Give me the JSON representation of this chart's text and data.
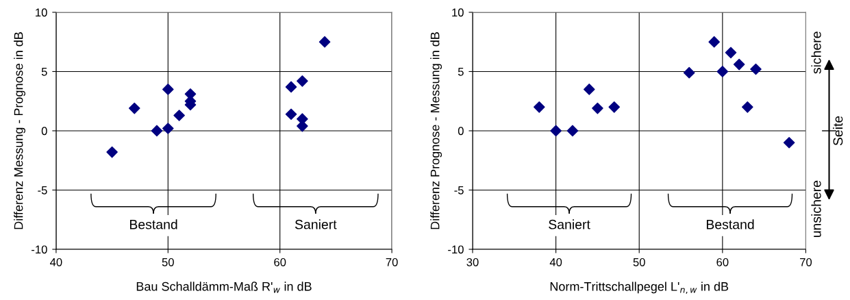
{
  "chart_data": [
    {
      "type": "scatter",
      "xlabel": "Bau Schalldämm-Maß R'$_{w}$ in dB",
      "ylabel": "Differenz Messung - Prognose in dB",
      "x": [
        45,
        47,
        49,
        50,
        50,
        51,
        52,
        52,
        52,
        61,
        62,
        61,
        62,
        62,
        64
      ],
      "series": [
        {
          "color": "#000080",
          "values": [
            -1.8,
            1.9,
            0,
            0.2,
            3.5,
            1.3,
            3.1,
            2.5,
            2.2,
            3.7,
            4.2,
            1.4,
            1.0,
            0.4,
            7.5
          ]
        }
      ],
      "xlim": [
        40,
        70
      ],
      "xticks": [
        40,
        50,
        60,
        70
      ],
      "ylim": [
        -10,
        10
      ],
      "yticks": [
        -10,
        -5,
        0,
        5,
        10
      ],
      "grid": true,
      "marker": "diamond",
      "annotations": [
        "Bestand",
        "Saniert"
      ]
    },
    {
      "type": "scatter",
      "xlabel": "Norm-Trittschallpegel L'$_{n,w}$ in dB",
      "ylabel": "Differenz Prognose - Messung in dB",
      "x": [
        38,
        40,
        42,
        44,
        45,
        47,
        56,
        59,
        60,
        61,
        62,
        63,
        64,
        68
      ],
      "series": [
        {
          "color": "#000080",
          "values": [
            2,
            0,
            0,
            3.5,
            1.9,
            2,
            4.9,
            7.5,
            5,
            6.6,
            5.6,
            2,
            5.2,
            -1
          ]
        }
      ],
      "xlim": [
        30,
        70
      ],
      "xticks": [
        30,
        40,
        50,
        60,
        70
      ],
      "ylim": [
        -10,
        10
      ],
      "yticks": [
        -10,
        -5,
        0,
        5,
        10
      ],
      "grid": true,
      "marker": "diamond",
      "annotations": [
        "Saniert",
        "Bestand",
        "sichere",
        "Seite",
        "unsichere"
      ]
    }
  ]
}
